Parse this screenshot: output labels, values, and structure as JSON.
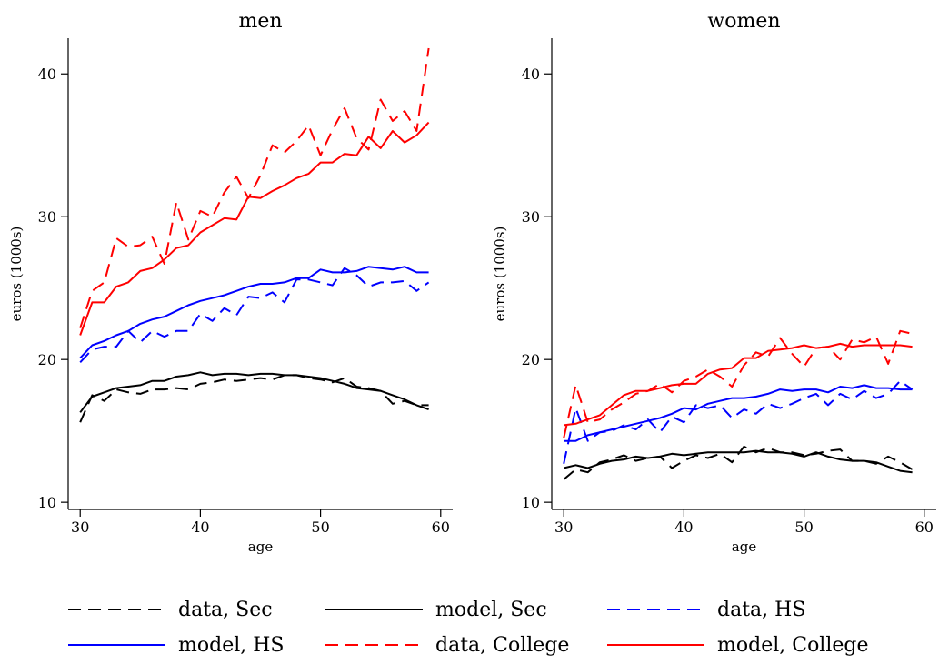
{
  "chart_data": [
    {
      "type": "line",
      "title": "men",
      "xlabel": "age",
      "ylabel": "euros (1000s)",
      "xlim": [
        29,
        61
      ],
      "ylim": [
        9.5,
        42.5
      ],
      "xticks": [
        30,
        40,
        50,
        60
      ],
      "yticks": [
        10,
        20,
        30,
        40
      ],
      "grid": false,
      "series": [
        {
          "name": "data, Sec",
          "color": "#000000",
          "dash": true,
          "x": [
            30,
            31,
            32,
            33,
            34,
            35,
            36,
            37,
            38,
            39,
            40,
            41,
            42,
            43,
            44,
            45,
            46,
            47,
            48,
            49,
            50,
            51,
            52,
            53,
            54,
            55,
            56,
            57,
            58,
            59
          ],
          "values": [
            15.6,
            17.5,
            17.1,
            17.9,
            17.7,
            17.6,
            17.9,
            17.9,
            18.0,
            17.9,
            18.3,
            18.4,
            18.6,
            18.5,
            18.6,
            18.7,
            18.6,
            18.9,
            18.9,
            18.7,
            18.6,
            18.4,
            18.7,
            18.1,
            18.0,
            17.8,
            16.9,
            17.1,
            16.8,
            16.8
          ]
        },
        {
          "name": "model, Sec",
          "color": "#000000",
          "dash": false,
          "x": [
            30,
            31,
            32,
            33,
            34,
            35,
            36,
            37,
            38,
            39,
            40,
            41,
            42,
            43,
            44,
            45,
            46,
            47,
            48,
            49,
            50,
            51,
            52,
            53,
            54,
            55,
            56,
            57,
            58,
            59
          ],
          "values": [
            16.3,
            17.4,
            17.7,
            18.0,
            18.1,
            18.2,
            18.5,
            18.5,
            18.8,
            18.9,
            19.1,
            18.9,
            19.0,
            19.0,
            18.9,
            19.0,
            19.0,
            18.9,
            18.9,
            18.8,
            18.7,
            18.5,
            18.3,
            18.0,
            17.9,
            17.8,
            17.5,
            17.2,
            16.8,
            16.5
          ]
        },
        {
          "name": "data, HS",
          "color": "#0000ff",
          "dash": true,
          "x": [
            30,
            31,
            32,
            33,
            34,
            35,
            36,
            37,
            38,
            39,
            40,
            41,
            42,
            43,
            44,
            45,
            46,
            47,
            48,
            49,
            50,
            51,
            52,
            53,
            54,
            55,
            56,
            57,
            58,
            59
          ],
          "values": [
            19.8,
            20.7,
            20.9,
            20.9,
            22.0,
            21.2,
            22.0,
            21.6,
            22.0,
            22.0,
            23.2,
            22.7,
            23.6,
            23.1,
            24.4,
            24.3,
            24.7,
            24.0,
            25.6,
            25.6,
            25.4,
            25.2,
            26.4,
            25.9,
            25.1,
            25.4,
            25.4,
            25.5,
            24.8,
            25.4
          ]
        },
        {
          "name": "model, HS",
          "color": "#0000ff",
          "dash": false,
          "x": [
            30,
            31,
            32,
            33,
            34,
            35,
            36,
            37,
            38,
            39,
            40,
            41,
            42,
            43,
            44,
            45,
            46,
            47,
            48,
            49,
            50,
            51,
            52,
            53,
            54,
            55,
            56,
            57,
            58,
            59
          ],
          "values": [
            20.1,
            21.0,
            21.3,
            21.7,
            22.0,
            22.5,
            22.8,
            23.0,
            23.4,
            23.8,
            24.1,
            24.3,
            24.5,
            24.8,
            25.1,
            25.3,
            25.3,
            25.4,
            25.7,
            25.7,
            26.3,
            26.1,
            26.1,
            26.2,
            26.5,
            26.4,
            26.3,
            26.5,
            26.1,
            26.1
          ]
        },
        {
          "name": "data, College",
          "color": "#ff0000",
          "dash": true,
          "x": [
            30,
            31,
            32,
            33,
            34,
            35,
            36,
            37,
            38,
            39,
            40,
            41,
            42,
            43,
            44,
            45,
            46,
            47,
            48,
            49,
            50,
            51,
            52,
            53,
            54,
            55,
            56,
            57,
            58,
            59
          ],
          "values": [
            22.2,
            24.8,
            25.4,
            28.5,
            27.9,
            28.0,
            28.6,
            26.7,
            31.0,
            28.4,
            30.4,
            30.0,
            31.7,
            32.8,
            31.3,
            32.9,
            35.0,
            34.5,
            35.3,
            36.4,
            34.3,
            36.1,
            37.6,
            35.5,
            34.7,
            38.2,
            36.7,
            37.4,
            36.0,
            41.8
          ]
        },
        {
          "name": "model, College",
          "color": "#ff0000",
          "dash": false,
          "x": [
            30,
            31,
            32,
            33,
            34,
            35,
            36,
            37,
            38,
            39,
            40,
            41,
            42,
            43,
            44,
            45,
            46,
            47,
            48,
            49,
            50,
            51,
            52,
            53,
            54,
            55,
            56,
            57,
            58,
            59
          ],
          "values": [
            21.7,
            24.0,
            24.0,
            25.1,
            25.4,
            26.2,
            26.4,
            27.0,
            27.8,
            28.0,
            28.9,
            29.4,
            29.9,
            29.8,
            31.4,
            31.3,
            31.8,
            32.2,
            32.7,
            33.0,
            33.8,
            33.8,
            34.4,
            34.3,
            35.6,
            34.8,
            36.0,
            35.2,
            35.7,
            36.6
          ]
        }
      ]
    },
    {
      "type": "line",
      "title": "women",
      "xlabel": "age",
      "ylabel": "euros (1000s)",
      "xlim": [
        29,
        61
      ],
      "ylim": [
        9.5,
        42.5
      ],
      "xticks": [
        30,
        40,
        50,
        60
      ],
      "yticks": [
        10,
        20,
        30,
        40
      ],
      "grid": false,
      "series": [
        {
          "name": "data, Sec",
          "color": "#000000",
          "dash": true,
          "x": [
            30,
            31,
            32,
            33,
            34,
            35,
            36,
            37,
            38,
            39,
            40,
            41,
            42,
            43,
            44,
            45,
            46,
            47,
            48,
            49,
            50,
            51,
            52,
            53,
            54,
            55,
            56,
            57,
            58,
            59
          ],
          "values": [
            11.6,
            12.3,
            12.1,
            12.8,
            13.0,
            13.3,
            12.9,
            13.1,
            13.2,
            12.4,
            12.9,
            13.3,
            13.1,
            13.4,
            12.8,
            13.9,
            13.5,
            13.8,
            13.5,
            13.5,
            13.3,
            13.4,
            13.6,
            13.7,
            12.9,
            12.9,
            12.7,
            13.2,
            12.8,
            12.3
          ]
        },
        {
          "name": "model, Sec",
          "color": "#000000",
          "dash": false,
          "x": [
            30,
            31,
            32,
            33,
            34,
            35,
            36,
            37,
            38,
            39,
            40,
            41,
            42,
            43,
            44,
            45,
            46,
            47,
            48,
            49,
            50,
            51,
            52,
            53,
            54,
            55,
            56,
            57,
            58,
            59
          ],
          "values": [
            12.4,
            12.6,
            12.4,
            12.7,
            12.9,
            13.0,
            13.2,
            13.1,
            13.2,
            13.4,
            13.3,
            13.4,
            13.5,
            13.5,
            13.5,
            13.5,
            13.6,
            13.5,
            13.5,
            13.4,
            13.2,
            13.5,
            13.2,
            13.0,
            12.9,
            12.9,
            12.8,
            12.5,
            12.2,
            12.1
          ]
        },
        {
          "name": "data, HS",
          "color": "#0000ff",
          "dash": true,
          "x": [
            30,
            31,
            32,
            33,
            34,
            35,
            36,
            37,
            38,
            39,
            40,
            41,
            42,
            43,
            44,
            45,
            46,
            47,
            48,
            49,
            50,
            51,
            52,
            53,
            54,
            55,
            56,
            57,
            58,
            59
          ],
          "values": [
            12.7,
            16.6,
            14.3,
            14.9,
            15.0,
            15.4,
            15.1,
            15.8,
            14.9,
            16.0,
            15.6,
            16.8,
            16.6,
            16.8,
            15.9,
            16.5,
            16.2,
            16.9,
            16.6,
            16.9,
            17.3,
            17.6,
            16.8,
            17.6,
            17.2,
            17.8,
            17.3,
            17.6,
            18.5,
            17.9
          ]
        },
        {
          "name": "model, HS",
          "color": "#0000ff",
          "dash": false,
          "x": [
            30,
            31,
            32,
            33,
            34,
            35,
            36,
            37,
            38,
            39,
            40,
            41,
            42,
            43,
            44,
            45,
            46,
            47,
            48,
            49,
            50,
            51,
            52,
            53,
            54,
            55,
            56,
            57,
            58,
            59
          ],
          "values": [
            14.3,
            14.3,
            14.7,
            14.9,
            15.1,
            15.3,
            15.5,
            15.7,
            15.9,
            16.2,
            16.6,
            16.5,
            16.9,
            17.1,
            17.3,
            17.3,
            17.4,
            17.6,
            17.9,
            17.8,
            17.9,
            17.9,
            17.7,
            18.1,
            18.0,
            18.2,
            18.0,
            18.0,
            17.9,
            17.9
          ]
        },
        {
          "name": "data, College",
          "color": "#ff0000",
          "dash": true,
          "x": [
            30,
            31,
            32,
            33,
            34,
            35,
            36,
            37,
            38,
            39,
            40,
            41,
            42,
            43,
            44,
            45,
            46,
            47,
            48,
            49,
            50,
            51,
            52,
            53,
            54,
            55,
            56,
            57,
            58,
            59
          ],
          "values": [
            14.5,
            18.2,
            15.6,
            15.8,
            16.5,
            17.0,
            17.6,
            17.8,
            18.3,
            17.7,
            18.5,
            18.8,
            19.3,
            18.8,
            18.1,
            19.6,
            20.5,
            20.2,
            21.5,
            20.4,
            19.5,
            20.8,
            20.9,
            20.0,
            21.4,
            21.2,
            21.6,
            19.7,
            22.0,
            21.8
          ]
        },
        {
          "name": "model, College",
          "color": "#ff0000",
          "dash": false,
          "x": [
            30,
            31,
            32,
            33,
            34,
            35,
            36,
            37,
            38,
            39,
            40,
            41,
            42,
            43,
            44,
            45,
            46,
            47,
            48,
            49,
            50,
            51,
            52,
            53,
            54,
            55,
            56,
            57,
            58,
            59
          ],
          "values": [
            15.4,
            15.5,
            15.8,
            16.1,
            16.8,
            17.5,
            17.8,
            17.8,
            18.0,
            18.2,
            18.3,
            18.3,
            19.0,
            19.3,
            19.4,
            20.1,
            20.1,
            20.6,
            20.7,
            20.8,
            21.0,
            20.8,
            20.9,
            21.1,
            20.9,
            21.0,
            21.0,
            21.0,
            21.0,
            20.9
          ]
        }
      ]
    }
  ],
  "legend": {
    "placement": "bottom",
    "entries": [
      {
        "label": "data, Sec",
        "color": "#000000",
        "dash": true
      },
      {
        "label": "model, Sec",
        "color": "#000000",
        "dash": false
      },
      {
        "label": "data, HS",
        "color": "#0000ff",
        "dash": true
      },
      {
        "label": "model, HS",
        "color": "#0000ff",
        "dash": false
      },
      {
        "label": "data, College",
        "color": "#ff0000",
        "dash": true
      },
      {
        "label": "model, College",
        "color": "#ff0000",
        "dash": false
      }
    ]
  }
}
